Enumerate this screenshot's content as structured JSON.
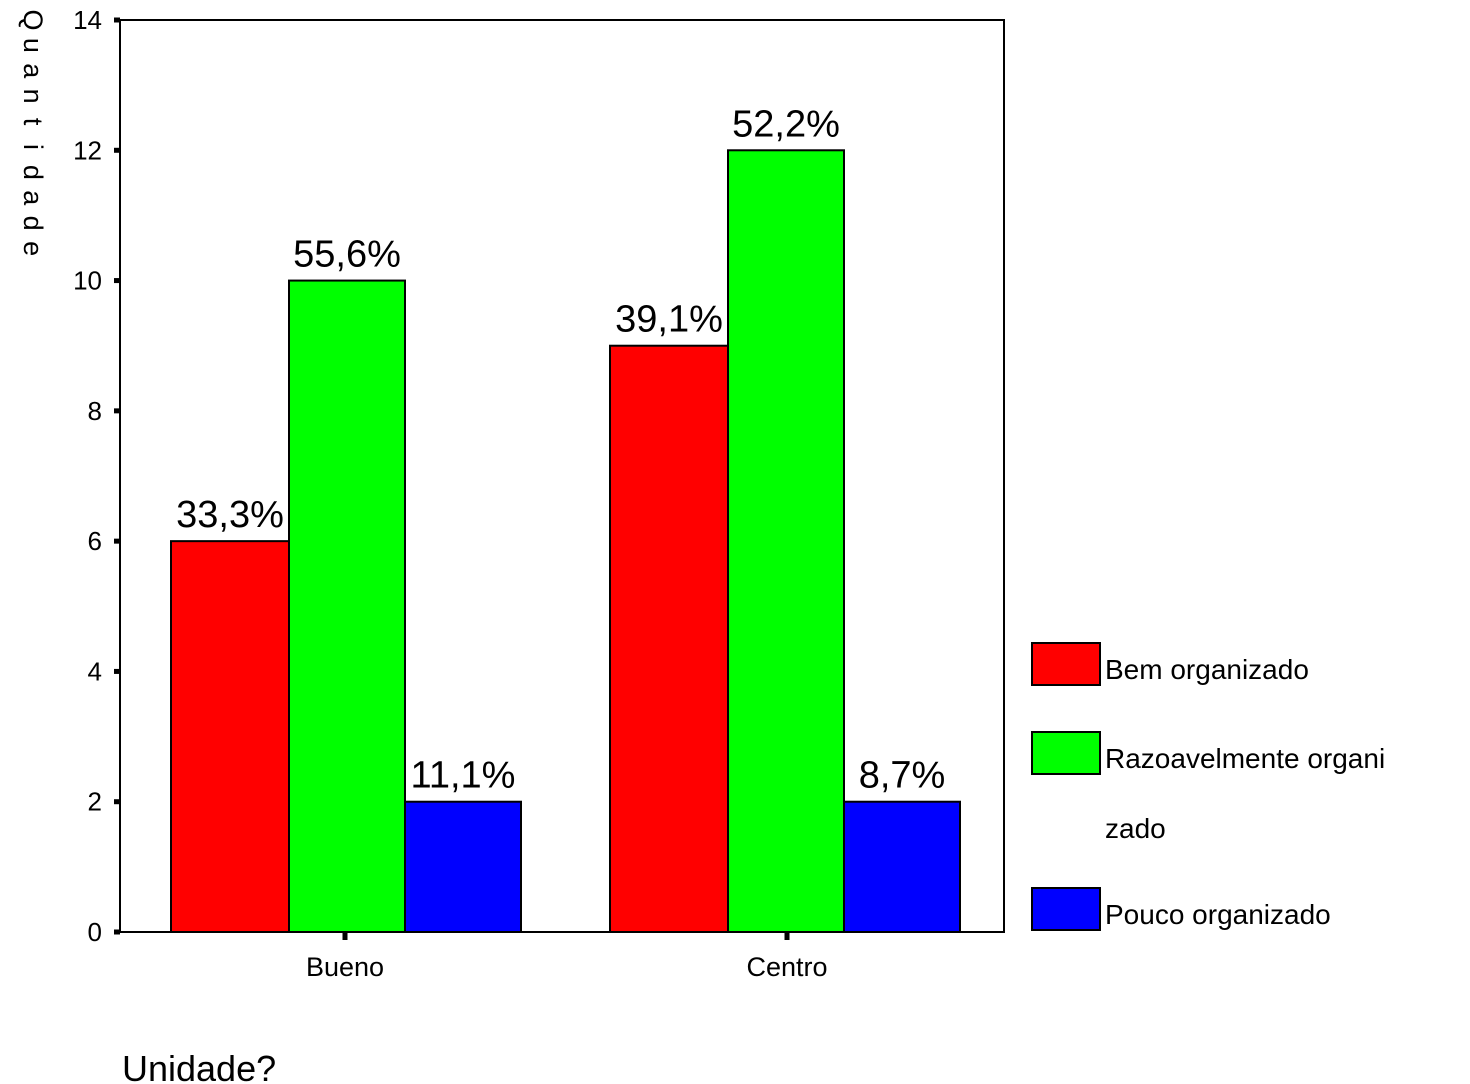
{
  "chart_data": {
    "type": "bar",
    "categories": [
      "Bueno",
      "Centro"
    ],
    "series": [
      {
        "name": "Bem organizado",
        "color": "#ff0000",
        "values": [
          6,
          9
        ],
        "labels": [
          "33,3%",
          "39,1%"
        ]
      },
      {
        "name": "Razoavelmente organizado",
        "color": "#00ff00",
        "values": [
          10,
          12
        ],
        "labels": [
          "55,6%",
          "52,2%"
        ]
      },
      {
        "name": "Pouco  organizado",
        "color": "#0000ff",
        "values": [
          2,
          2
        ],
        "labels": [
          "11,1%",
          "8,7%"
        ]
      }
    ],
    "legend": {
      "placement": "right",
      "entries": [
        {
          "lines": [
            "Bem organizado"
          ]
        },
        {
          "lines": [
            "Razoavelmente organi",
            "zado"
          ]
        },
        {
          "lines": [
            "Pouco  organizado"
          ]
        }
      ]
    },
    "xlabel": "Unidade?",
    "ylabel": "Quantidade",
    "ylim": [
      0,
      14
    ],
    "yticks": [
      0,
      2,
      4,
      6,
      8,
      10,
      12,
      14
    ],
    "grid": false
  }
}
